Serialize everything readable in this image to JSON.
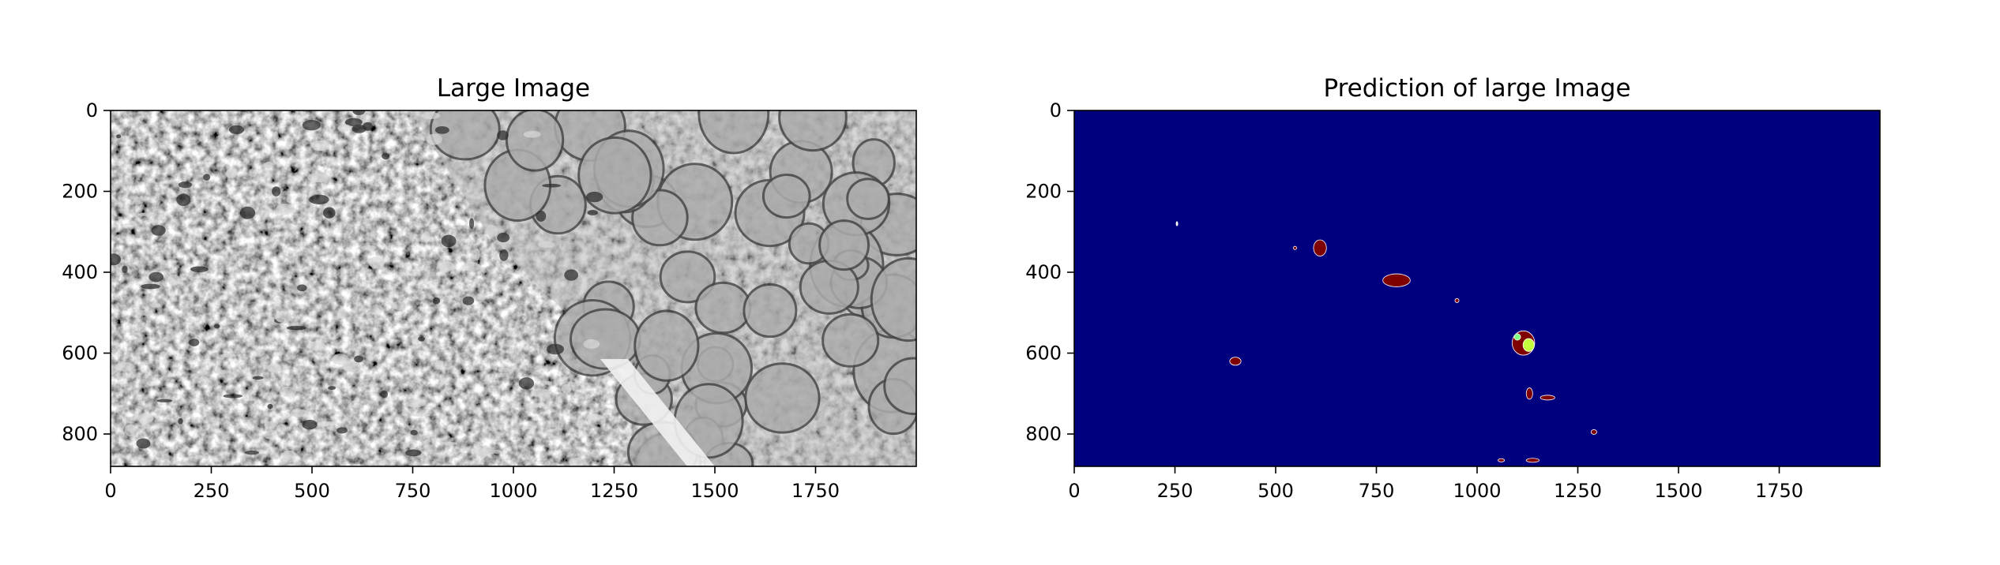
{
  "figure": {
    "background": "#ffffff"
  },
  "panels": [
    {
      "id": "large-image",
      "title": "Large Image",
      "colormap": "gray",
      "content": "grayscale electron microscopy tissue image",
      "xlim": [
        0,
        2000
      ],
      "ylim": [
        880,
        0
      ],
      "xticks": [
        0,
        250,
        500,
        750,
        1000,
        1250,
        1500,
        1750
      ],
      "yticks": [
        0,
        200,
        400,
        600,
        800
      ]
    },
    {
      "id": "prediction",
      "title": "Prediction of large Image",
      "colormap": "jet",
      "background_color": "#00007f",
      "xlim": [
        0,
        2000
      ],
      "ylim": [
        880,
        0
      ],
      "xticks": [
        0,
        250,
        500,
        750,
        1000,
        1250,
        1500,
        1750
      ],
      "yticks": [
        0,
        200,
        400,
        600,
        800
      ],
      "blobs": [
        {
          "x": 610,
          "y": 340,
          "rx": 16,
          "ry": 20,
          "color": "#7f0000"
        },
        {
          "x": 800,
          "y": 420,
          "rx": 34,
          "ry": 16,
          "color": "#7f0000"
        },
        {
          "x": 400,
          "y": 620,
          "rx": 14,
          "ry": 10,
          "color": "#7f0000"
        },
        {
          "x": 1115,
          "y": 575,
          "rx": 28,
          "ry": 30,
          "color": "#7f0000"
        },
        {
          "x": 1128,
          "y": 580,
          "rx": 14,
          "ry": 16,
          "color": "#c3ff3c"
        },
        {
          "x": 1100,
          "y": 560,
          "rx": 8,
          "ry": 8,
          "color": "#80ff80"
        },
        {
          "x": 1130,
          "y": 700,
          "rx": 8,
          "ry": 14,
          "color": "#7f0000"
        },
        {
          "x": 1175,
          "y": 710,
          "rx": 18,
          "ry": 6,
          "color": "#7f0000"
        },
        {
          "x": 950,
          "y": 470,
          "rx": 5,
          "ry": 5,
          "color": "#7f0000"
        },
        {
          "x": 1290,
          "y": 795,
          "rx": 7,
          "ry": 6,
          "color": "#7f0000"
        },
        {
          "x": 548,
          "y": 340,
          "rx": 4,
          "ry": 4,
          "color": "#7f0000"
        },
        {
          "x": 255,
          "y": 280,
          "rx": 2,
          "ry": 5,
          "color": "#ffffff"
        },
        {
          "x": 1138,
          "y": 865,
          "rx": 16,
          "ry": 5,
          "color": "#7f0000"
        },
        {
          "x": 1060,
          "y": 865,
          "rx": 8,
          "ry": 4,
          "color": "#7f0000"
        }
      ]
    }
  ]
}
